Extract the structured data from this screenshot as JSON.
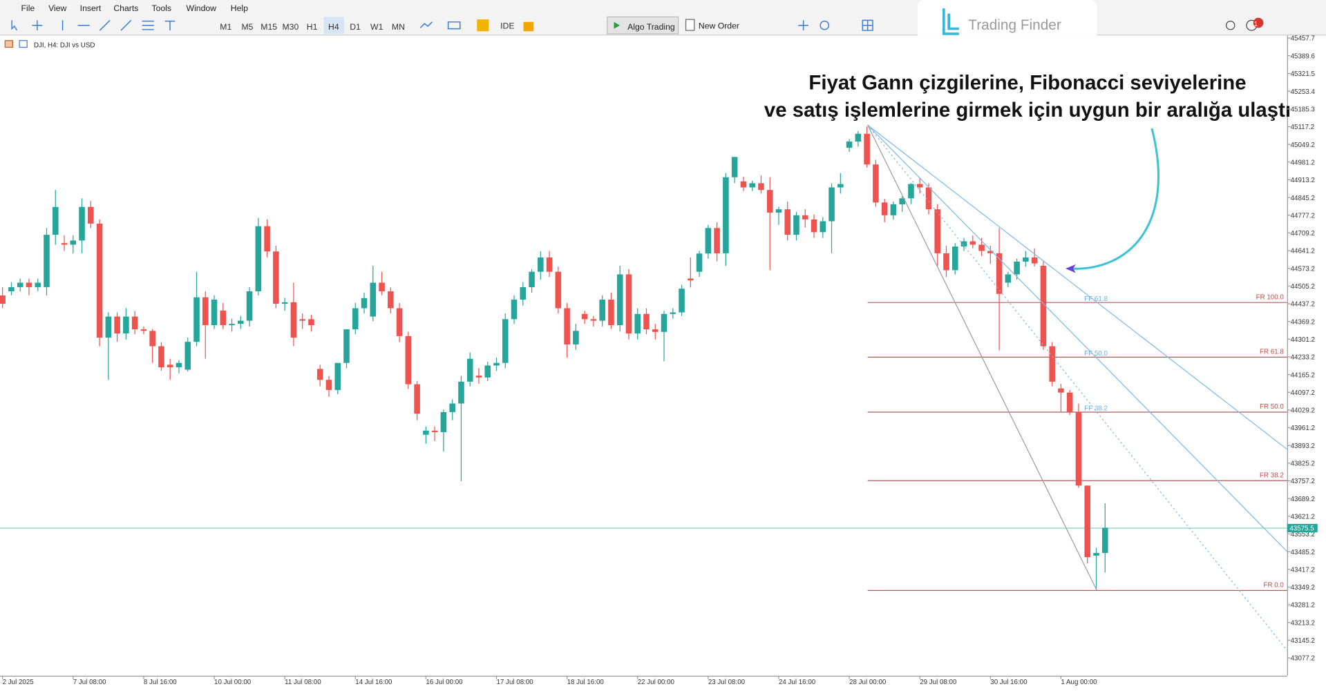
{
  "menu": [
    "File",
    "View",
    "Insert",
    "Charts",
    "Tools",
    "Window",
    "Help"
  ],
  "timeframes": [
    "M1",
    "M5",
    "M15",
    "M30",
    "H1",
    "H4",
    "D1",
    "W1",
    "MN"
  ],
  "toolbar": {
    "ide": "IDE",
    "algo": "Algo Trading",
    "order": "New Order",
    "badge": "1"
  },
  "logo": "Trading Finder",
  "chart_data": {
    "type": "candlestick",
    "title": "DJI, H4:  DJI vs USD",
    "up_color": "#26a69a",
    "down_color": "#ef5350",
    "ylim": [
      43008.7,
      45467.4
    ],
    "yticks": [
      45457.7,
      45389.6,
      45321.5,
      45253.4,
      45185.3,
      45117.2,
      45049.2,
      44981.2,
      44913.2,
      44845.2,
      44777.2,
      44709.2,
      44641.2,
      44573.2,
      44505.2,
      44437.2,
      44369.2,
      44301.2,
      44233.2,
      44165.2,
      44097.2,
      44029.2,
      43961.2,
      43893.2,
      43825.2,
      43757.2,
      43689.2,
      43621.2,
      43553.2,
      43485.2,
      43417.2,
      43349.2,
      43281.2,
      43213.2,
      43145.2,
      43077.2
    ],
    "last_price": 43575.5,
    "categories": [
      "2 Jul 2025",
      null,
      null,
      null,
      null,
      null,
      null,
      null,
      "7 Jul 08:00",
      null,
      null,
      null,
      null,
      null,
      null,
      null,
      "8 Jul 16:00",
      null,
      null,
      null,
      null,
      null,
      null,
      null,
      "10 Jul 00:00",
      null,
      null,
      null,
      null,
      null,
      null,
      null,
      "11 Jul 08:00",
      null,
      null,
      null,
      null,
      null,
      null,
      null,
      "14 Jul 16:00",
      null,
      null,
      null,
      null,
      null,
      null,
      null,
      "16 Jul 00:00",
      null,
      null,
      null,
      null,
      null,
      null,
      null,
      "17 Jul 08:00",
      null,
      null,
      null,
      null,
      null,
      null,
      null,
      "18 Jul 16:00",
      null,
      null,
      null,
      null,
      null,
      null,
      null,
      "22 Jul 00:00",
      null,
      null,
      null,
      null,
      null,
      null,
      null,
      "23 Jul 08:00",
      null,
      null,
      null,
      null,
      null,
      null,
      null,
      "24 Jul 16:00",
      null,
      null,
      null,
      null,
      null,
      null,
      null,
      "28 Jul 00:00",
      null,
      null,
      null,
      null,
      null,
      null,
      null,
      "29 Jul 08:00",
      null,
      null,
      null,
      null,
      null,
      null,
      null,
      "30 Jul 16:00",
      null,
      null,
      null,
      null,
      null,
      null,
      null,
      "1 Aug 00:00",
      null,
      null,
      null,
      null,
      null
    ],
    "ohlc": [
      [
        44469,
        44501,
        44420,
        44437
      ],
      [
        44485,
        44520,
        44470,
        44501
      ],
      [
        44501,
        44534,
        44485,
        44518
      ],
      [
        44518,
        44534,
        44470,
        44501
      ],
      [
        44501,
        44534,
        44485,
        44518
      ],
      [
        44501,
        44728,
        44469,
        44702
      ],
      [
        44702,
        44874,
        44664,
        44809
      ],
      [
        44670,
        44700,
        44640,
        44664
      ],
      [
        44664,
        44700,
        44630,
        44680
      ],
      [
        44680,
        44842,
        44631,
        44809
      ],
      [
        44809,
        44832,
        44728,
        44745
      ],
      [
        44745,
        44761,
        44274,
        44307
      ],
      [
        44307,
        44404,
        44145,
        44388
      ],
      [
        44388,
        44404,
        44291,
        44323
      ],
      [
        44323,
        44420,
        44300,
        44388
      ],
      [
        44388,
        44410,
        44320,
        44339
      ],
      [
        44339,
        44350,
        44320,
        44333
      ],
      [
        44333,
        44340,
        44210,
        44274
      ],
      [
        44274,
        44290,
        44180,
        44193
      ],
      [
        44203,
        44226,
        44145,
        44193
      ],
      [
        44193,
        44220,
        44170,
        44210
      ],
      [
        44184,
        44307,
        44177,
        44291
      ],
      [
        44291,
        44560,
        44274,
        44462
      ],
      [
        44462,
        44485,
        44226,
        44355
      ],
      [
        44355,
        44470,
        44340,
        44453
      ],
      [
        44411,
        44440,
        44340,
        44355
      ],
      [
        44355,
        44380,
        44330,
        44360
      ],
      [
        44360,
        44390,
        44340,
        44372
      ],
      [
        44372,
        44501,
        44350,
        44485
      ],
      [
        44485,
        44767,
        44469,
        44735
      ],
      [
        44735,
        44761,
        44615,
        44638
      ],
      [
        44638,
        44660,
        44420,
        44437
      ],
      [
        44437,
        44460,
        44410,
        44443
      ],
      [
        44443,
        44518,
        44274,
        44307
      ],
      [
        44378,
        44400,
        44340,
        44372
      ],
      [
        44378,
        44395,
        44330,
        44355
      ],
      [
        44187,
        44203,
        44120,
        44145
      ],
      [
        44145,
        44160,
        44080,
        44106
      ],
      [
        44106,
        44200,
        44090,
        44210
      ],
      [
        44210,
        44320,
        44190,
        44339
      ],
      [
        44339,
        44440,
        44320,
        44420
      ],
      [
        44420,
        44480,
        44400,
        44459
      ],
      [
        44388,
        44583,
        44370,
        44518
      ],
      [
        44518,
        44560,
        44470,
        44485
      ],
      [
        44485,
        44500,
        44400,
        44420
      ],
      [
        44420,
        44440,
        44290,
        44313
      ],
      [
        44313,
        44330,
        44110,
        44128
      ],
      [
        44128,
        44140,
        43990,
        44015
      ],
      [
        43934,
        43966,
        43900,
        43950
      ],
      [
        43950,
        43966,
        43910,
        43944
      ],
      [
        43944,
        44031,
        43869,
        44021
      ],
      [
        44021,
        44070,
        43990,
        44054
      ],
      [
        44054,
        44160,
        43756,
        44138
      ],
      [
        44138,
        44250,
        44120,
        44226
      ],
      [
        44161,
        44190,
        44130,
        44154
      ],
      [
        44154,
        44215,
        44140,
        44200
      ],
      [
        44200,
        44230,
        44180,
        44210
      ],
      [
        44210,
        44400,
        44190,
        44378
      ],
      [
        44378,
        44470,
        44360,
        44453
      ],
      [
        44453,
        44520,
        44430,
        44501
      ],
      [
        44501,
        44570,
        44480,
        44560
      ],
      [
        44560,
        44638,
        44530,
        44615
      ],
      [
        44615,
        44640,
        44540,
        44560
      ],
      [
        44560,
        44580,
        44400,
        44420
      ],
      [
        44420,
        44440,
        44230,
        44281
      ],
      [
        44281,
        44360,
        44260,
        44333
      ],
      [
        44398,
        44410,
        44360,
        44378
      ],
      [
        44378,
        44390,
        44350,
        44372
      ],
      [
        44372,
        44470,
        44350,
        44453
      ],
      [
        44453,
        44480,
        44340,
        44355
      ],
      [
        44355,
        44583,
        44330,
        44550
      ],
      [
        44550,
        44570,
        44300,
        44323
      ],
      [
        44323,
        44420,
        44300,
        44398
      ],
      [
        44398,
        44420,
        44320,
        44339
      ],
      [
        44339,
        44360,
        44300,
        44329
      ],
      [
        44329,
        44410,
        44216,
        44398
      ],
      [
        44398,
        44420,
        44380,
        44404
      ],
      [
        44404,
        44510,
        44390,
        44495
      ],
      [
        44534,
        44615,
        44500,
        44527
      ],
      [
        44560,
        44640,
        44540,
        44630
      ],
      [
        44630,
        44740,
        44610,
        44728
      ],
      [
        44728,
        44750,
        44600,
        44631
      ],
      [
        44631,
        44939,
        44583,
        44923
      ],
      [
        44923,
        45001,
        44900,
        45001
      ],
      [
        44907,
        44925,
        44870,
        44884
      ],
      [
        44884,
        44910,
        44870,
        44900
      ],
      [
        44900,
        44930,
        44860,
        44874
      ],
      [
        44874,
        44923,
        44566,
        44787
      ],
      [
        44787,
        44810,
        44740,
        44800
      ],
      [
        44800,
        44830,
        44680,
        44702
      ],
      [
        44702,
        44790,
        44680,
        44777
      ],
      [
        44777,
        44800,
        44730,
        44761
      ],
      [
        44761,
        44780,
        44690,
        44712
      ],
      [
        44712,
        44770,
        44690,
        44754
      ],
      [
        44754,
        44900,
        44631,
        44884
      ],
      [
        44884,
        44939,
        44860,
        44897
      ],
      [
        45036,
        45070,
        45020,
        45060
      ],
      [
        45060,
        45100,
        45040,
        45090
      ],
      [
        45090,
        45118,
        44960,
        44972
      ],
      [
        44972,
        44990,
        44810,
        44826
      ],
      [
        44826,
        44840,
        44750,
        44777
      ],
      [
        44777,
        44830,
        44760,
        44819
      ],
      [
        44819,
        44850,
        44790,
        44842
      ],
      [
        44842,
        44900,
        44820,
        44897
      ],
      [
        44897,
        44920,
        44860,
        44884
      ],
      [
        44884,
        44900,
        44780,
        44800
      ],
      [
        44800,
        44820,
        44580,
        44631
      ],
      [
        44631,
        44660,
        44540,
        44566
      ],
      [
        44566,
        44670,
        44550,
        44657
      ],
      [
        44657,
        44690,
        44640,
        44677
      ],
      [
        44677,
        44700,
        44650,
        44664
      ],
      [
        44664,
        44690,
        44620,
        44640
      ],
      [
        44640,
        44660,
        44590,
        44631
      ],
      [
        44631,
        44728,
        44258,
        44475
      ],
      [
        44518,
        44560,
        44500,
        44550
      ],
      [
        44550,
        44610,
        44530,
        44599
      ],
      [
        44599,
        44640,
        44580,
        44615
      ],
      [
        44615,
        44650,
        44580,
        44592
      ],
      [
        44583,
        44600,
        44260,
        44274
      ],
      [
        44274,
        44290,
        44120,
        44138
      ],
      [
        44112,
        44130,
        44020,
        44096
      ],
      [
        44096,
        44106,
        44010,
        44021
      ],
      [
        44021,
        44054,
        43730,
        43739
      ],
      [
        43739,
        43739,
        43440,
        43464
      ],
      [
        43470,
        43500,
        43340,
        43480
      ],
      [
        43480,
        43671,
        43405,
        43577
      ]
    ],
    "fib_levels": [
      {
        "label": "FR 100.0",
        "price": 44442
      },
      {
        "label": "FR 61.8",
        "price": 44232
      },
      {
        "label": "FR 50.0",
        "price": 44021
      },
      {
        "label": "FR 38.2",
        "price": 43758
      },
      {
        "label": "FR 0.0",
        "price": 43336
      }
    ],
    "fan_labels": [
      {
        "label": "FF 61.8",
        "price": 44458
      },
      {
        "label": "FF 50.0",
        "price": 44248
      },
      {
        "label": "FF 38.2",
        "price": 44037
      }
    ],
    "annotation": [
      "Fiyat Gann çizgilerine, Fibonacci seviyelerine",
      "ve satış işlemlerine girmek için uygun bir aralığa ulaştı"
    ]
  }
}
